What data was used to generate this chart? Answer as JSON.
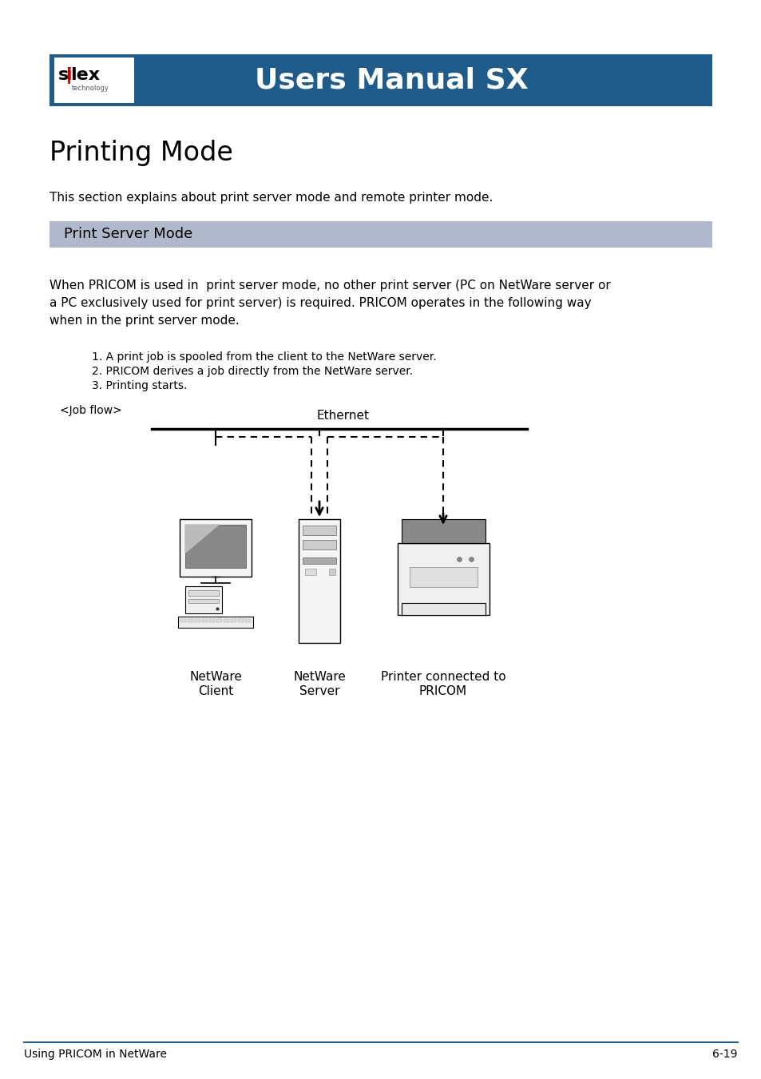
{
  "bg_color": "#ffffff",
  "header_bg": "#1f5c8b",
  "header_text": "Users Manual SX",
  "header_text_color": "#ffffff",
  "silex_main": "s lex",
  "silex_sub": "technology",
  "page_title": "Printing Mode",
  "intro_text": "This section explains about print server mode and remote printer mode.",
  "section_bg": "#b0b8cc",
  "section_title": "Print Server Mode",
  "body_text1": "When PRICOM is used in  print server mode, no other print server (PC on NetWare server or",
  "body_text2": "a PC exclusively used for print server) is required. PRICOM operates in the following way",
  "body_text3": "when in the print server mode.",
  "list1": "1. A print job is spooled from the client to the NetWare server.",
  "list2": "2. PRICOM derives a job directly from the NetWare server.",
  "list3": "3. Printing starts.",
  "job_flow": "<Job flow>",
  "ethernet": "Ethernet",
  "lbl1a": "NetWare",
  "lbl1b": "Client",
  "lbl2a": "NetWare",
  "lbl2b": "Server",
  "lbl3a": "Printer connected to",
  "lbl3b": "PRICOM",
  "footer_left": "Using PRICOM in NetWare",
  "footer_right": "6-19",
  "footer_line_color": "#1f5c8b"
}
